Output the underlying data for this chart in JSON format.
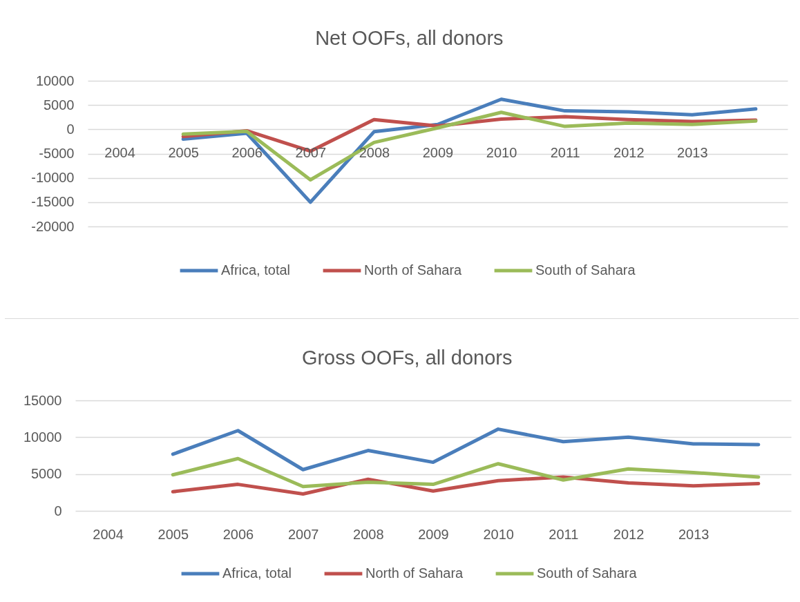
{
  "chart_data": [
    {
      "type": "line",
      "title": "Net OOFs, all donors",
      "categories": [
        "2004",
        "2005",
        "2006",
        "2007",
        "2008",
        "2009",
        "2010",
        "2011",
        "2012",
        "2013",
        null
      ],
      "series": [
        {
          "name": "Africa, total",
          "color": "#4a7ebb",
          "values": [
            null,
            -2000,
            -800,
            -15000,
            -500,
            1000,
            6200,
            3800,
            3600,
            3000,
            4200
          ]
        },
        {
          "name": "North of Sahara",
          "color": "#c0504d",
          "values": [
            null,
            -1500,
            -300,
            -4500,
            2000,
            700,
            2100,
            2600,
            2000,
            1600,
            1900
          ]
        },
        {
          "name": "South of Sahara",
          "color": "#9bbb59",
          "values": [
            null,
            -1000,
            -400,
            -10400,
            -2700,
            300,
            3500,
            600,
            1300,
            1000,
            1700
          ]
        }
      ],
      "ylim": [
        -20000,
        10000
      ],
      "yticks": [
        {
          "value": -20000,
          "label": "-20000"
        },
        {
          "value": -15000,
          "label": "-15000"
        },
        {
          "value": -10000,
          "label": "-10000"
        },
        {
          "value": -5000,
          "label": "-5000"
        },
        0,
        5000,
        10000
      ],
      "grid": "y",
      "legend": "bottom"
    },
    {
      "type": "line",
      "title": "Gross OOFs, all donors",
      "categories": [
        "2004",
        "2005",
        "2006",
        "2007",
        "2008",
        "2009",
        "2010",
        "2011",
        "2012",
        "2013",
        null
      ],
      "series": [
        {
          "name": "Africa, total",
          "color": "#4a7ebb",
          "values": [
            null,
            7700,
            10900,
            5600,
            8200,
            6600,
            11100,
            9400,
            10000,
            9100,
            9000
          ]
        },
        {
          "name": "North of Sahara",
          "color": "#c0504d",
          "values": [
            null,
            2600,
            3600,
            2300,
            4300,
            2700,
            4100,
            4600,
            3800,
            3400,
            3700
          ]
        },
        {
          "name": "South of Sahara",
          "color": "#9bbb59",
          "values": [
            null,
            4900,
            7100,
            3300,
            3900,
            3600,
            6400,
            4200,
            5700,
            5200,
            4600
          ]
        }
      ],
      "ylim": [
        0,
        15000
      ],
      "yticks": [
        0,
        5000,
        10000,
        15000
      ],
      "grid": "y",
      "legend": "bottom"
    }
  ]
}
